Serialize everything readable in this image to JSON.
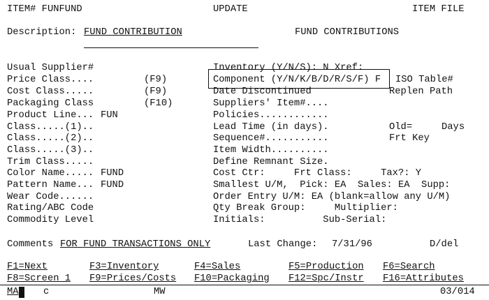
{
  "header": {
    "item": "ITEM# FUNFUND",
    "mode": "UPDATE",
    "screen": "ITEM FILE"
  },
  "description": {
    "label": "Description:",
    "value": "FUND CONTRIBUTION",
    "alt": "FUND CONTRIBUTIONS"
  },
  "left_fields": [
    {
      "label": "Usual Supplier#"
    },
    {
      "label": "Price Class....",
      "value": "(F9)"
    },
    {
      "label": "Cost Class.....",
      "value": "(F9)"
    },
    {
      "label": "Packaging Class",
      "value": "(F10)"
    },
    {
      "label": "Product Line...",
      "value": "FUN"
    },
    {
      "label": "Class.....(1).."
    },
    {
      "label": "Class.....(2).."
    },
    {
      "label": "Class.....(3).."
    },
    {
      "label": "Trim Class....."
    },
    {
      "label": "Color Name.....",
      "value": "FUND"
    },
    {
      "label": "Pattern Name...",
      "value": "FUND"
    },
    {
      "label": "Wear Code......"
    },
    {
      "label": "Rating/ABC Code"
    },
    {
      "label": "Commodity Level"
    }
  ],
  "right_fields": [
    "Inventory (Y/N/S): N Xref:",
    "Component (Y/N/K/B/D/R/S/F) F",
    "Date Discontinued",
    "Suppliers' Item#....",
    "Policies............",
    "Lead Time (in days).",
    "Sequence#...........",
    "Item Width..........",
    "Define Remnant Size.",
    "Cost Ctr:     Frt Class:     Tax?: Y",
    "Smallest U/M,  Pick: EA  Sales: EA  Supp:",
    "Order Entry U/M: EA (blank=allow any U/M)",
    "Qty Break Group:     Multiplier:",
    "Initials:          Sub-Serial:"
  ],
  "far_right": {
    "iso": "ISO Table#",
    "replen": "Replen Path",
    "old": "Old=",
    "days": "Days",
    "frt_key": "Frt Key"
  },
  "comments": {
    "label": "Comments",
    "value": "FOR FUND TRANSACTIONS ONLY",
    "last_change_label": "Last Change:",
    "last_change": "7/31/96",
    "del": "D/del"
  },
  "function_keys": [
    [
      "F1=Next",
      "F3=Inventory",
      "F4=Sales",
      "F5=Production",
      "F6=Search"
    ],
    [
      "F8=Screen 1",
      "F9=Prices/Costs",
      "F10=Packaging",
      "F12=Spc/Instr",
      "F16=Attributes"
    ]
  ],
  "status": {
    "field": "MA",
    "mode": "c",
    "user": "MW",
    "position": "03/014"
  }
}
